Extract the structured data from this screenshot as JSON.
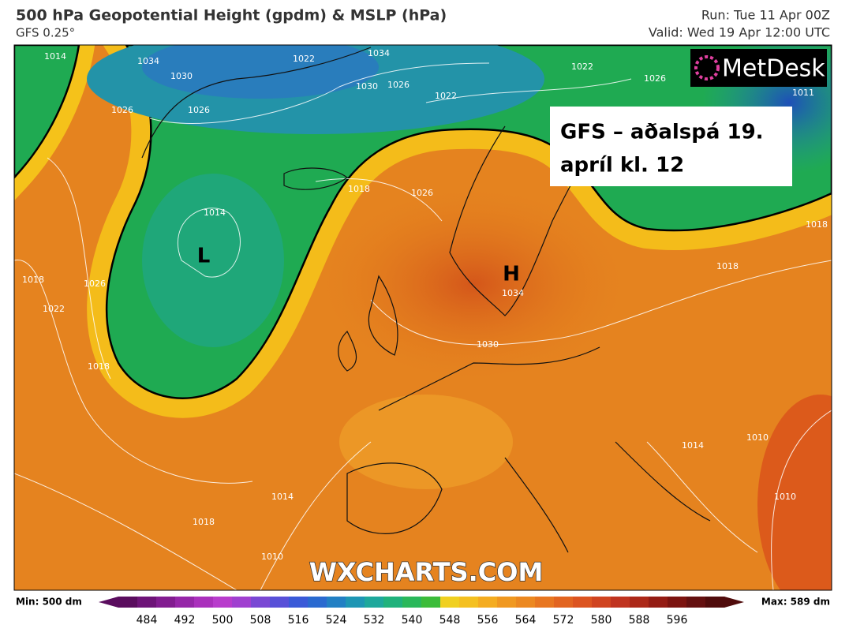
{
  "header": {
    "title": "500 hPa Geopotential Height (gpdm) & MSLP (hPa)",
    "model": "GFS 0.25°",
    "run": "Run: Tue 11 Apr 00Z",
    "valid": "Valid: Wed 19 Apr 12:00 UTC"
  },
  "map": {
    "logo": "MetDesk",
    "watermark": "WXCHARTS.COM",
    "overlay": [
      "GFS – aðalspá 19.",
      "apríl kl. 12"
    ],
    "low": "L",
    "high": "H",
    "isobar_labels": [
      1014,
      1034,
      1030,
      1026,
      1022,
      1034,
      1030,
      1026,
      1022,
      1022,
      1026,
      1011,
      1026,
      1014,
      1018,
      1022,
      1026,
      1018,
      1026,
      1018,
      1034,
      1030,
      1018,
      1014,
      1010,
      1014,
      1010,
      1010,
      1018,
      1018
    ]
  },
  "colorbar": {
    "min_label": "Min: 500 dm",
    "max_label": "Max: 589 dm",
    "ticks": [
      484,
      492,
      500,
      508,
      516,
      524,
      532,
      540,
      548,
      556,
      564,
      572,
      580,
      588,
      596
    ]
  }
}
